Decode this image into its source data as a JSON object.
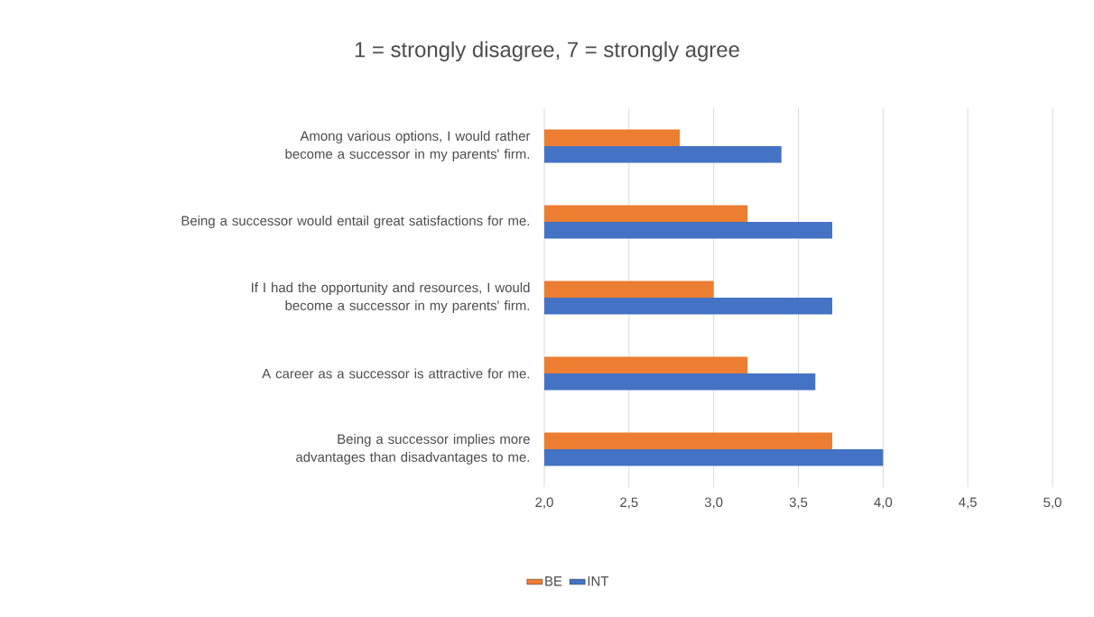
{
  "chart_data": {
    "type": "bar",
    "orientation": "horizontal",
    "title": "1 = strongly disagree, 7 = strongly agree",
    "categories": [
      "Among various options, I would rather become a successor in my parents' firm.",
      "Being a successor would entail great satisfactions for me.",
      "If I had the opportunity and resources, I would become a successor in my parents' firm.",
      "A career as a successor is attractive for me.",
      "Being a successor implies more advantages than disadvantages to me."
    ],
    "series": [
      {
        "name": "BE",
        "color": "#ed7d31",
        "values": [
          2.8,
          3.2,
          3.0,
          3.2,
          3.7
        ]
      },
      {
        "name": "INT",
        "color": "#4472c4",
        "values": [
          3.4,
          3.7,
          3.7,
          3.6,
          4.0
        ]
      }
    ],
    "xlim": [
      2,
      5
    ],
    "xticks": [
      {
        "value": 2,
        "label": "2,0"
      },
      {
        "value": 2.5,
        "label": "2,5"
      },
      {
        "value": 3,
        "label": "3,0"
      },
      {
        "value": 3.5,
        "label": "3,5"
      },
      {
        "value": 4,
        "label": "4,0"
      },
      {
        "value": 4.5,
        "label": "4,5"
      },
      {
        "value": 5,
        "label": "5,0"
      }
    ],
    "grid": "x",
    "legend": "bottom"
  }
}
